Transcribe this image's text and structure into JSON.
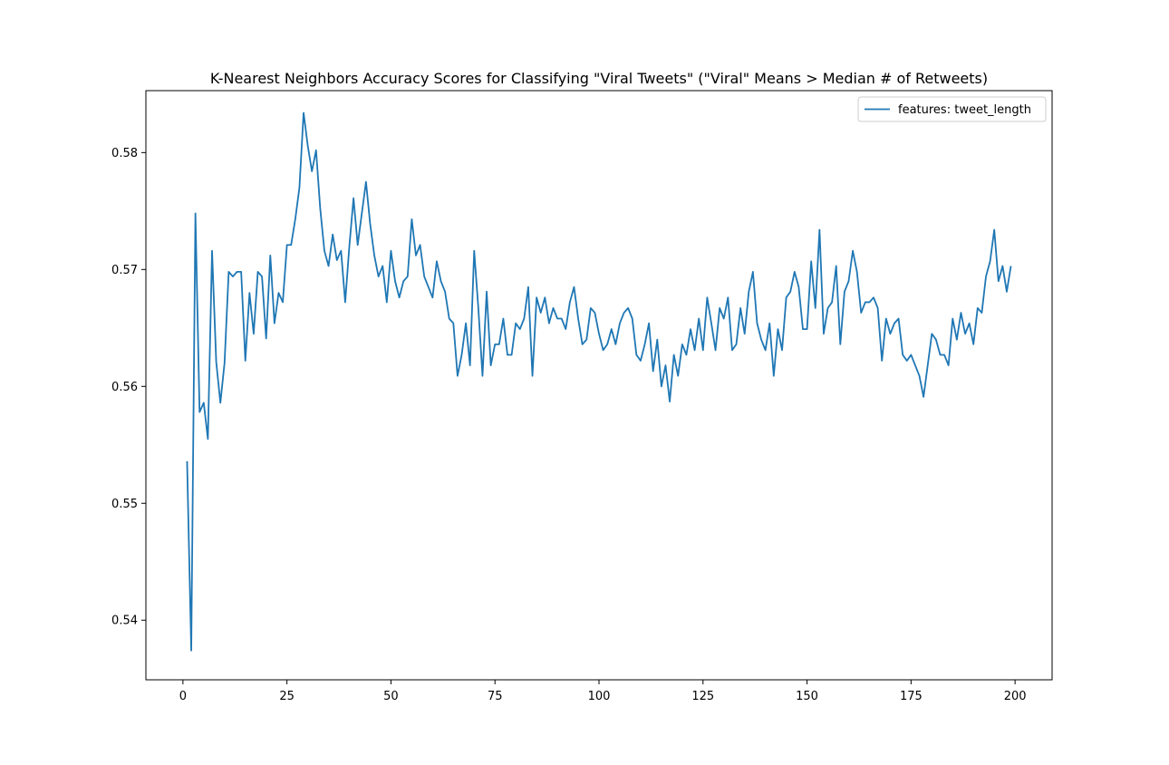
{
  "chart_data": {
    "type": "line",
    "title": "K-Nearest Neighbors Accuracy Scores for Classifying \"Viral Tweets\" (\"Viral\" Means > Median # of Retweets)",
    "xlabel": "",
    "ylabel": "",
    "xlim": [
      -8.9,
      208.9
    ],
    "ylim": [
      0.5349,
      0.5853
    ],
    "xticks": [
      0,
      25,
      50,
      75,
      100,
      125,
      150,
      175,
      200
    ],
    "yticks": [
      0.54,
      0.55,
      0.56,
      0.57,
      0.58
    ],
    "ytick_labels": [
      "0.54",
      "0.55",
      "0.56",
      "0.57",
      "0.58"
    ],
    "grid": false,
    "legend_position": "top-right",
    "series_color": "#1f77b4",
    "series": [
      {
        "name": "features: tweet_length",
        "x": [
          1,
          2,
          3,
          4,
          5,
          6,
          7,
          8,
          9,
          10,
          11,
          12,
          13,
          14,
          15,
          16,
          17,
          18,
          19,
          20,
          21,
          22,
          23,
          24,
          25,
          26,
          27,
          28,
          29,
          30,
          31,
          32,
          33,
          34,
          35,
          36,
          37,
          38,
          39,
          40,
          41,
          42,
          43,
          44,
          45,
          46,
          47,
          48,
          49,
          50,
          51,
          52,
          53,
          54,
          55,
          56,
          57,
          58,
          59,
          60,
          61,
          62,
          63,
          64,
          65,
          66,
          67,
          68,
          69,
          70,
          71,
          72,
          73,
          74,
          75,
          76,
          77,
          78,
          79,
          80,
          81,
          82,
          83,
          84,
          85,
          86,
          87,
          88,
          89,
          90,
          91,
          92,
          93,
          94,
          95,
          96,
          97,
          98,
          99,
          100,
          101,
          102,
          103,
          104,
          105,
          106,
          107,
          108,
          109,
          110,
          111,
          112,
          113,
          114,
          115,
          116,
          117,
          118,
          119,
          120,
          121,
          122,
          123,
          124,
          125,
          126,
          127,
          128,
          129,
          130,
          131,
          132,
          133,
          134,
          135,
          136,
          137,
          138,
          139,
          140,
          141,
          142,
          143,
          144,
          145,
          146,
          147,
          148,
          149,
          150,
          151,
          152,
          153,
          154,
          155,
          156,
          157,
          158,
          159,
          160,
          161,
          162,
          163,
          164,
          165,
          166,
          167,
          168,
          169,
          170,
          171,
          172,
          173,
          174,
          175,
          176,
          177,
          178,
          179,
          180,
          181,
          182,
          183,
          184,
          185,
          186,
          187,
          188,
          189,
          190,
          191,
          192,
          193,
          194,
          195,
          196,
          197,
          198,
          199
        ],
        "y": [
          0.5536,
          0.5374,
          0.5748,
          0.5578,
          0.5586,
          0.5555,
          0.5716,
          0.5621,
          0.5586,
          0.562,
          0.5698,
          0.5694,
          0.5698,
          0.5698,
          0.5622,
          0.568,
          0.5645,
          0.5698,
          0.5694,
          0.5641,
          0.5712,
          0.5654,
          0.568,
          0.5672,
          0.5721,
          0.5721,
          0.5743,
          0.577,
          0.5834,
          0.5806,
          0.5784,
          0.5802,
          0.5752,
          0.5716,
          0.5703,
          0.573,
          0.5708,
          0.5716,
          0.5672,
          0.572,
          0.5761,
          0.5721,
          0.5748,
          0.5775,
          0.5739,
          0.5712,
          0.5694,
          0.5703,
          0.5672,
          0.5716,
          0.569,
          0.5676,
          0.569,
          0.5694,
          0.5743,
          0.5712,
          0.5721,
          0.5694,
          0.5685,
          0.5676,
          0.5707,
          0.569,
          0.5681,
          0.5658,
          0.5654,
          0.5609,
          0.5627,
          0.5654,
          0.5618,
          0.5716,
          0.5667,
          0.5609,
          0.5681,
          0.5618,
          0.5636,
          0.5636,
          0.5658,
          0.5627,
          0.5627,
          0.5654,
          0.5649,
          0.5658,
          0.5685,
          0.5609,
          0.5676,
          0.5663,
          0.5676,
          0.5654,
          0.5667,
          0.5658,
          0.5658,
          0.5649,
          0.5672,
          0.5685,
          0.5658,
          0.5636,
          0.564,
          0.5667,
          0.5663,
          0.5645,
          0.5631,
          0.5636,
          0.5649,
          0.5636,
          0.5654,
          0.5663,
          0.5667,
          0.5658,
          0.5627,
          0.5622,
          0.5636,
          0.5654,
          0.5613,
          0.564,
          0.56,
          0.5618,
          0.5587,
          0.5627,
          0.5609,
          0.5636,
          0.5627,
          0.5649,
          0.5631,
          0.5658,
          0.5631,
          0.5676,
          0.5654,
          0.5631,
          0.5667,
          0.5658,
          0.5676,
          0.5631,
          0.5636,
          0.5667,
          0.5645,
          0.5681,
          0.5698,
          0.5654,
          0.564,
          0.5631,
          0.5654,
          0.5609,
          0.5649,
          0.5631,
          0.5676,
          0.5681,
          0.5698,
          0.5685,
          0.5649,
          0.5649,
          0.5707,
          0.5667,
          0.5734,
          0.5645,
          0.5667,
          0.5672,
          0.5703,
          0.5636,
          0.5681,
          0.569,
          0.5716,
          0.5698,
          0.5663,
          0.5672,
          0.5672,
          0.5676,
          0.5667,
          0.5622,
          0.5658,
          0.5645,
          0.5654,
          0.5658,
          0.5627,
          0.5622,
          0.5627,
          0.5618,
          0.5609,
          0.5591,
          0.5618,
          0.5645,
          0.564,
          0.5627,
          0.5627,
          0.5618,
          0.5658,
          0.564,
          0.5663,
          0.5645,
          0.5654,
          0.5636,
          0.5667,
          0.5663,
          0.5694,
          0.5707,
          0.5734,
          0.569,
          0.5703,
          0.5681,
          0.5703
        ]
      }
    ]
  }
}
